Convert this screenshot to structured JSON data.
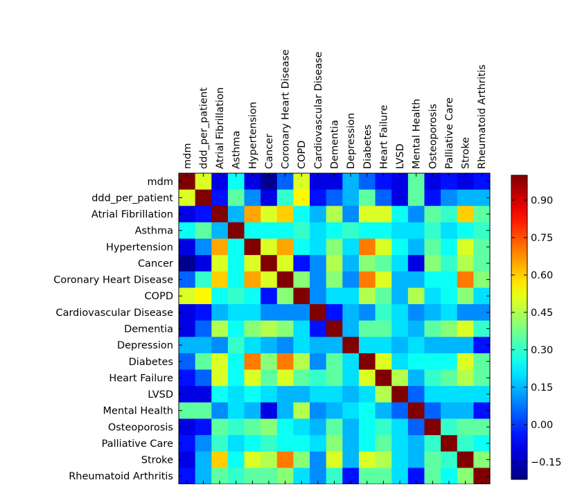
{
  "chart_data": {
    "type": "heatmap",
    "labels": [
      "mdm",
      "ddd_per_patient",
      "Atrial Fibrillation",
      "Asthma",
      "Hypertension",
      "Cancer",
      "Coronary Heart Disease",
      "COPD",
      "Cardiovascular Disease",
      "Dementia",
      "Depression",
      "Diabetes",
      "Heart Failure",
      "LVSD",
      "Mental Health",
      "Osteoporosis",
      "Palliative Care",
      "Stroke",
      "Rheumatoid Arthritis"
    ],
    "colormap": "jet",
    "vmin": -0.22,
    "vmax": 1.0,
    "colorbar_ticks": [
      {
        "value": 0.9,
        "label": "0.90"
      },
      {
        "value": 0.75,
        "label": "0.75"
      },
      {
        "value": 0.6,
        "label": "0.60"
      },
      {
        "value": 0.45,
        "label": "0.45"
      },
      {
        "value": 0.3,
        "label": "0.30"
      },
      {
        "value": 0.15,
        "label": "0.15"
      },
      {
        "value": 0.0,
        "label": "0.00"
      },
      {
        "value": -0.15,
        "label": "−0.15"
      }
    ],
    "matrix": [
      [
        1.0,
        0.5,
        -0.1,
        0.25,
        -0.1,
        -0.2,
        0.05,
        0.5,
        -0.1,
        -0.1,
        0.15,
        0.05,
        -0.05,
        -0.1,
        0.35,
        -0.1,
        -0.05,
        -0.1,
        -0.05
      ],
      [
        0.5,
        1.0,
        -0.05,
        0.35,
        0.1,
        -0.1,
        0.3,
        0.55,
        -0.05,
        0.05,
        0.15,
        0.35,
        0.05,
        -0.1,
        0.35,
        -0.05,
        0.1,
        0.15,
        0.15
      ],
      [
        -0.1,
        -0.05,
        1.0,
        0.15,
        0.65,
        0.5,
        0.6,
        0.25,
        0.15,
        0.45,
        0.1,
        0.5,
        0.5,
        0.25,
        0.1,
        0.35,
        0.3,
        0.6,
        0.35
      ],
      [
        0.25,
        0.35,
        0.15,
        1.0,
        0.25,
        0.25,
        0.25,
        0.3,
        0.2,
        0.25,
        0.3,
        0.25,
        0.25,
        0.2,
        0.2,
        0.3,
        0.2,
        0.25,
        0.3
      ],
      [
        -0.1,
        0.1,
        0.65,
        0.25,
        1.0,
        0.5,
        0.65,
        0.25,
        0.2,
        0.4,
        0.2,
        0.7,
        0.5,
        0.25,
        0.15,
        0.35,
        0.25,
        0.5,
        0.35
      ],
      [
        -0.2,
        -0.1,
        0.5,
        0.25,
        0.5,
        1.0,
        0.5,
        -0.05,
        0.1,
        0.45,
        0.15,
        0.4,
        0.35,
        0.2,
        -0.1,
        0.4,
        0.3,
        0.45,
        0.35
      ],
      [
        0.05,
        0.3,
        0.6,
        0.25,
        0.65,
        0.5,
        1.0,
        0.4,
        0.1,
        0.4,
        0.1,
        0.7,
        0.5,
        0.15,
        0.15,
        0.25,
        0.25,
        0.7,
        0.4
      ],
      [
        0.5,
        0.55,
        0.25,
        0.3,
        0.25,
        -0.05,
        0.4,
        1.0,
        0.1,
        0.2,
        0.2,
        0.45,
        0.35,
        0.15,
        0.45,
        0.2,
        0.25,
        0.4,
        0.2
      ],
      [
        -0.1,
        -0.05,
        0.15,
        0.2,
        0.2,
        0.1,
        0.1,
        0.1,
        1.0,
        -0.05,
        0.15,
        0.1,
        0.3,
        0.2,
        0.1,
        0.15,
        0.2,
        0.1,
        0.1
      ],
      [
        -0.1,
        0.05,
        0.45,
        0.25,
        0.4,
        0.45,
        0.4,
        0.2,
        -0.05,
        1.0,
        0.15,
        0.35,
        0.35,
        0.2,
        0.15,
        0.35,
        0.4,
        0.5,
        0.3
      ],
      [
        0.15,
        0.15,
        0.1,
        0.3,
        0.2,
        0.15,
        0.1,
        0.2,
        0.15,
        0.15,
        1.0,
        0.2,
        0.2,
        0.15,
        0.2,
        0.15,
        0.15,
        0.15,
        -0.05
      ],
      [
        0.05,
        0.35,
        0.5,
        0.25,
        0.7,
        0.4,
        0.7,
        0.45,
        0.1,
        0.35,
        0.2,
        1.0,
        0.5,
        0.2,
        0.25,
        0.25,
        0.25,
        0.5,
        0.35
      ],
      [
        -0.05,
        0.05,
        0.5,
        0.25,
        0.5,
        0.35,
        0.5,
        0.35,
        0.3,
        0.35,
        0.2,
        0.5,
        1.0,
        0.45,
        0.15,
        0.3,
        0.35,
        0.45,
        0.35
      ],
      [
        -0.1,
        -0.1,
        0.25,
        0.2,
        0.25,
        0.2,
        0.15,
        0.15,
        0.2,
        0.2,
        0.15,
        0.2,
        0.45,
        1.0,
        0.05,
        0.2,
        0.2,
        0.2,
        0.2
      ],
      [
        0.35,
        0.35,
        0.1,
        0.2,
        0.15,
        -0.1,
        0.15,
        0.45,
        0.1,
        0.15,
        0.2,
        0.25,
        0.15,
        0.05,
        1.0,
        0.05,
        0.15,
        0.15,
        -0.05
      ],
      [
        -0.1,
        -0.05,
        0.35,
        0.3,
        0.35,
        0.4,
        0.25,
        0.2,
        0.15,
        0.35,
        0.15,
        0.25,
        0.3,
        0.2,
        0.05,
        1.0,
        0.3,
        0.35,
        0.35
      ],
      [
        -0.05,
        0.1,
        0.3,
        0.2,
        0.25,
        0.3,
        0.25,
        0.25,
        0.2,
        0.4,
        0.15,
        0.25,
        0.35,
        0.2,
        0.15,
        0.3,
        1.0,
        0.3,
        0.25
      ],
      [
        -0.1,
        0.15,
        0.6,
        0.25,
        0.5,
        0.45,
        0.7,
        0.4,
        0.1,
        0.5,
        0.15,
        0.5,
        0.45,
        0.2,
        0.15,
        0.35,
        0.3,
        1.0,
        0.4
      ],
      [
        -0.05,
        0.15,
        0.35,
        0.3,
        0.35,
        0.35,
        0.4,
        0.2,
        0.1,
        0.3,
        -0.05,
        0.35,
        0.35,
        0.2,
        -0.05,
        0.35,
        0.25,
        0.4,
        1.0
      ]
    ]
  }
}
